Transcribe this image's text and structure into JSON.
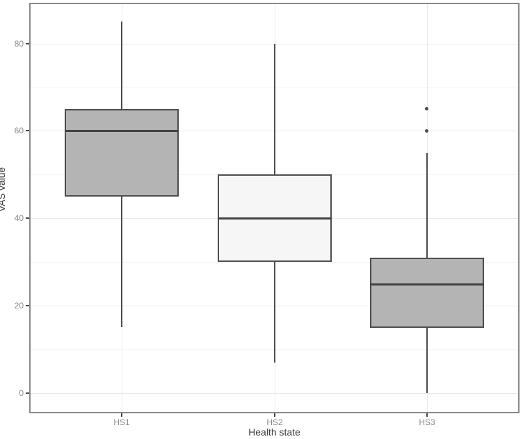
{
  "chart_data": {
    "type": "boxplot",
    "title": "",
    "xlabel": "Health state",
    "ylabel": "VAS value",
    "ylim": [
      -4.3,
      89.0
    ],
    "yticks": [
      0,
      20,
      40,
      60,
      80
    ],
    "yticks_minor": [
      10,
      30,
      50,
      70
    ],
    "grid": "major and minor horizontal, major vertical at category centers",
    "legend": "none",
    "categories": [
      "HS1",
      "HS2",
      "HS3"
    ],
    "series": [
      {
        "category": "HS1",
        "min": 15,
        "q1": 45,
        "median": 60,
        "q3": 65,
        "max": 85,
        "outliers": [],
        "fill": "#b4b4b4"
      },
      {
        "category": "HS2",
        "min": 7,
        "q1": 30,
        "median": 40,
        "q3": 50,
        "max": 80,
        "outliers": [],
        "fill": "#f6f6f6"
      },
      {
        "category": "HS3",
        "min": 0,
        "q1": 15,
        "median": 25,
        "q3": 31,
        "max": 55,
        "outliers": [
          60,
          65
        ],
        "fill": "#b4b4b4"
      }
    ],
    "colors": {
      "panel_border": "#898989",
      "grid_major": "#e9e9e9",
      "grid_minor": "#f4f4f4",
      "box_stroke": "#4d4d4d",
      "median_stroke": "#424242",
      "whisker_stroke": "#4d4d4d",
      "outlier": "#4d4d4d",
      "tick_label": "#8a8a8a",
      "axis_title": "#3d3d3d"
    }
  }
}
